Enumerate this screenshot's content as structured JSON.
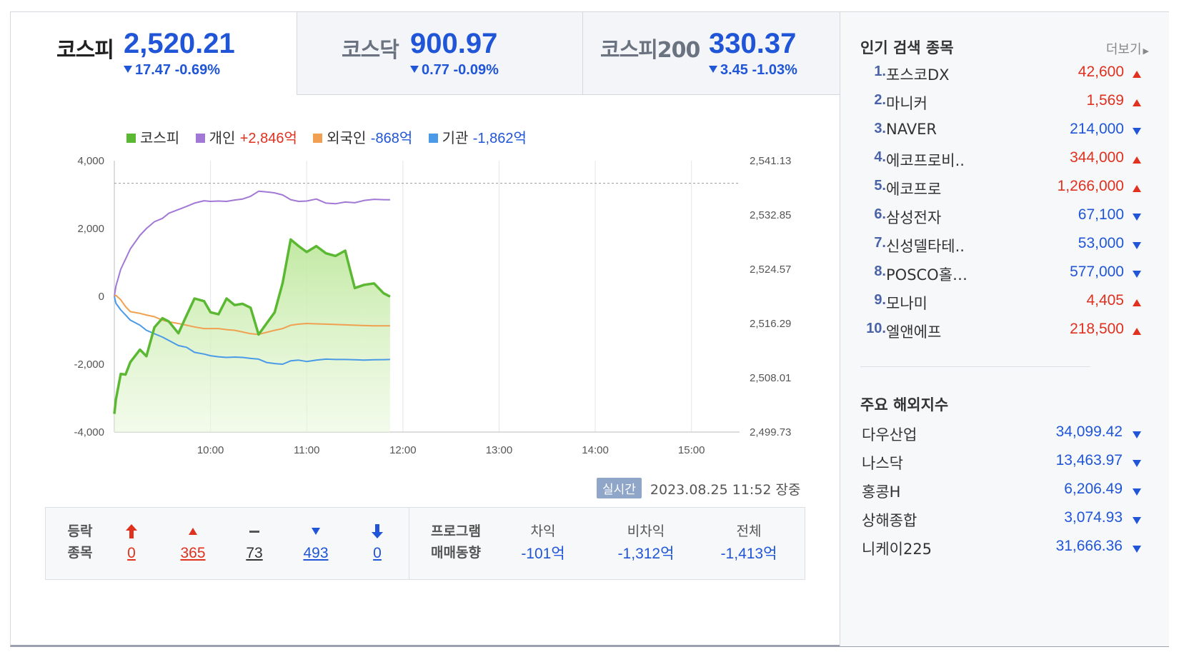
{
  "tabs": [
    {
      "name": "코스피",
      "value": "2,520.21",
      "change": "17.47 -0.69%"
    },
    {
      "name": "코스닥",
      "value": "900.97",
      "change": "0.77 -0.09%"
    },
    {
      "name": "코스피200",
      "value": "330.37",
      "change": "3.45 -1.03%"
    }
  ],
  "legend": [
    {
      "name": "코스피",
      "value": "",
      "color": "#5bb832"
    },
    {
      "name": "개인",
      "value": "+2,846억",
      "color": "#a178d6"
    },
    {
      "name": "외국인",
      "value": "-868억",
      "color": "#f0a050"
    },
    {
      "name": "기관",
      "value": "-1,862억",
      "color": "#4a9ae8"
    }
  ],
  "chart_data": {
    "type": "line",
    "x_ticks": [
      "10:00",
      "11:00",
      "12:00",
      "13:00",
      "14:00",
      "15:00"
    ],
    "y_left_ticks": [
      "4,000",
      "2,000",
      "0",
      "-2,000",
      "-4,000"
    ],
    "y_right_ticks": [
      "2,541.13",
      "2,532.85",
      "2,524.57",
      "2,516.29",
      "2,508.01",
      "2,499.73"
    ],
    "y_left_range": [
      -4000,
      4000
    ],
    "y_right_range": [
      2499.73,
      2541.13
    ],
    "reference_line": 2537.68,
    "x_range_minutes": [
      540,
      930
    ],
    "x": [
      540,
      541,
      544,
      547,
      550,
      556,
      560,
      565,
      570,
      574,
      580,
      585,
      590,
      596,
      600,
      605,
      610,
      615,
      620,
      625,
      630,
      635,
      640,
      645,
      650,
      655,
      660,
      666,
      672,
      678,
      684,
      690,
      696,
      702,
      708,
      712
    ],
    "series": [
      {
        "name": "코스피",
        "color": "#5bb832",
        "fill": true,
        "values": [
          2502.5,
          2504.7,
          2508.6,
          2508.5,
          2510.4,
          2512.3,
          2511.3,
          2515.7,
          2517.1,
          2516.6,
          2514.8,
          2517.5,
          2520.1,
          2519.7,
          2518.0,
          2517.7,
          2520.1,
          2519.1,
          2519.3,
          2518.7,
          2514.6,
          2516.3,
          2518.0,
          2522.5,
          2529.1,
          2528.1,
          2527.2,
          2528.1,
          2527.0,
          2526.6,
          2527.4,
          2521.7,
          2522.2,
          2522.4,
          2520.9,
          2520.4
        ]
      },
      {
        "name": "개인",
        "color": "#a178d6",
        "fill": false,
        "values": [
          0,
          300,
          800,
          1100,
          1400,
          1800,
          2000,
          2200,
          2300,
          2450,
          2560,
          2650,
          2750,
          2820,
          2800,
          2810,
          2800,
          2840,
          2870,
          2950,
          3100,
          3080,
          3050,
          2990,
          2850,
          2800,
          2810,
          2870,
          2750,
          2730,
          2780,
          2760,
          2830,
          2860,
          2850,
          2846
        ]
      },
      {
        "name": "외국인",
        "color": "#f0a050",
        "fill": false,
        "values": [
          0,
          30,
          -100,
          -300,
          -450,
          -500,
          -550,
          -600,
          -700,
          -750,
          -800,
          -850,
          -900,
          -950,
          -950,
          -950,
          -980,
          -1000,
          -1050,
          -1100,
          -1120,
          -1060,
          -1000,
          -950,
          -850,
          -820,
          -800,
          -810,
          -820,
          -830,
          -840,
          -850,
          -860,
          -870,
          -868,
          -868
        ]
      },
      {
        "name": "기관",
        "color": "#4a9ae8",
        "fill": false,
        "values": [
          0,
          -200,
          -400,
          -550,
          -700,
          -850,
          -1000,
          -1100,
          -1200,
          -1300,
          -1450,
          -1500,
          -1650,
          -1700,
          -1750,
          -1780,
          -1800,
          -1790,
          -1800,
          -1830,
          -1850,
          -1950,
          -1980,
          -2000,
          -1900,
          -1880,
          -1920,
          -1880,
          -1850,
          -1860,
          -1860,
          -1870,
          -1880,
          -1870,
          -1865,
          -1862
        ]
      }
    ]
  },
  "status": {
    "badge": "실시간",
    "time": "2023.08.25 11:52 장중"
  },
  "advance_decline": {
    "label_top": "등락",
    "label_bottom": "종목",
    "upper_limit": "0",
    "up": "365",
    "flat": "73",
    "down": "493",
    "lower_limit": "0"
  },
  "program": {
    "label_top": "프로그램",
    "label_bottom": "매매동향",
    "items": [
      {
        "label": "차익",
        "value": "-101억"
      },
      {
        "label": "비차익",
        "value": "-1,312억"
      },
      {
        "label": "전체",
        "value": "-1,413억"
      }
    ]
  },
  "popular": {
    "title": "인기 검색 종목",
    "more": "더보기",
    "items": [
      {
        "rank": "1.",
        "name": "포스코DX",
        "price": "42,600",
        "dir": "up"
      },
      {
        "rank": "2.",
        "name": "마니커",
        "price": "1,569",
        "dir": "up"
      },
      {
        "rank": "3.",
        "name": "NAVER",
        "price": "214,000",
        "dir": "down"
      },
      {
        "rank": "4.",
        "name": "에코프로비..",
        "price": "344,000",
        "dir": "up"
      },
      {
        "rank": "5.",
        "name": "에코프로",
        "price": "1,266,000",
        "dir": "up"
      },
      {
        "rank": "6.",
        "name": "삼성전자",
        "price": "67,100",
        "dir": "down"
      },
      {
        "rank": "7.",
        "name": "신성델타테..",
        "price": "53,000",
        "dir": "down"
      },
      {
        "rank": "8.",
        "name": "POSCO홀…",
        "price": "577,000",
        "dir": "down"
      },
      {
        "rank": "9.",
        "name": "모나미",
        "price": "4,405",
        "dir": "up"
      },
      {
        "rank": "10.",
        "name": "엘앤에프",
        "price": "218,500",
        "dir": "up"
      }
    ]
  },
  "overseas": {
    "title": "주요 해외지수",
    "items": [
      {
        "name": "다우산업",
        "value": "34,099.42",
        "dir": "down"
      },
      {
        "name": "나스닥",
        "value": "13,463.97",
        "dir": "down"
      },
      {
        "name": "홍콩H",
        "value": "6,206.49",
        "dir": "down"
      },
      {
        "name": "상해종합",
        "value": "3,074.93",
        "dir": "down"
      },
      {
        "name": "니케이225",
        "value": "31,666.36",
        "dir": "down"
      }
    ]
  },
  "colors": {
    "up": "#e0301e",
    "down": "#1f55d6"
  }
}
